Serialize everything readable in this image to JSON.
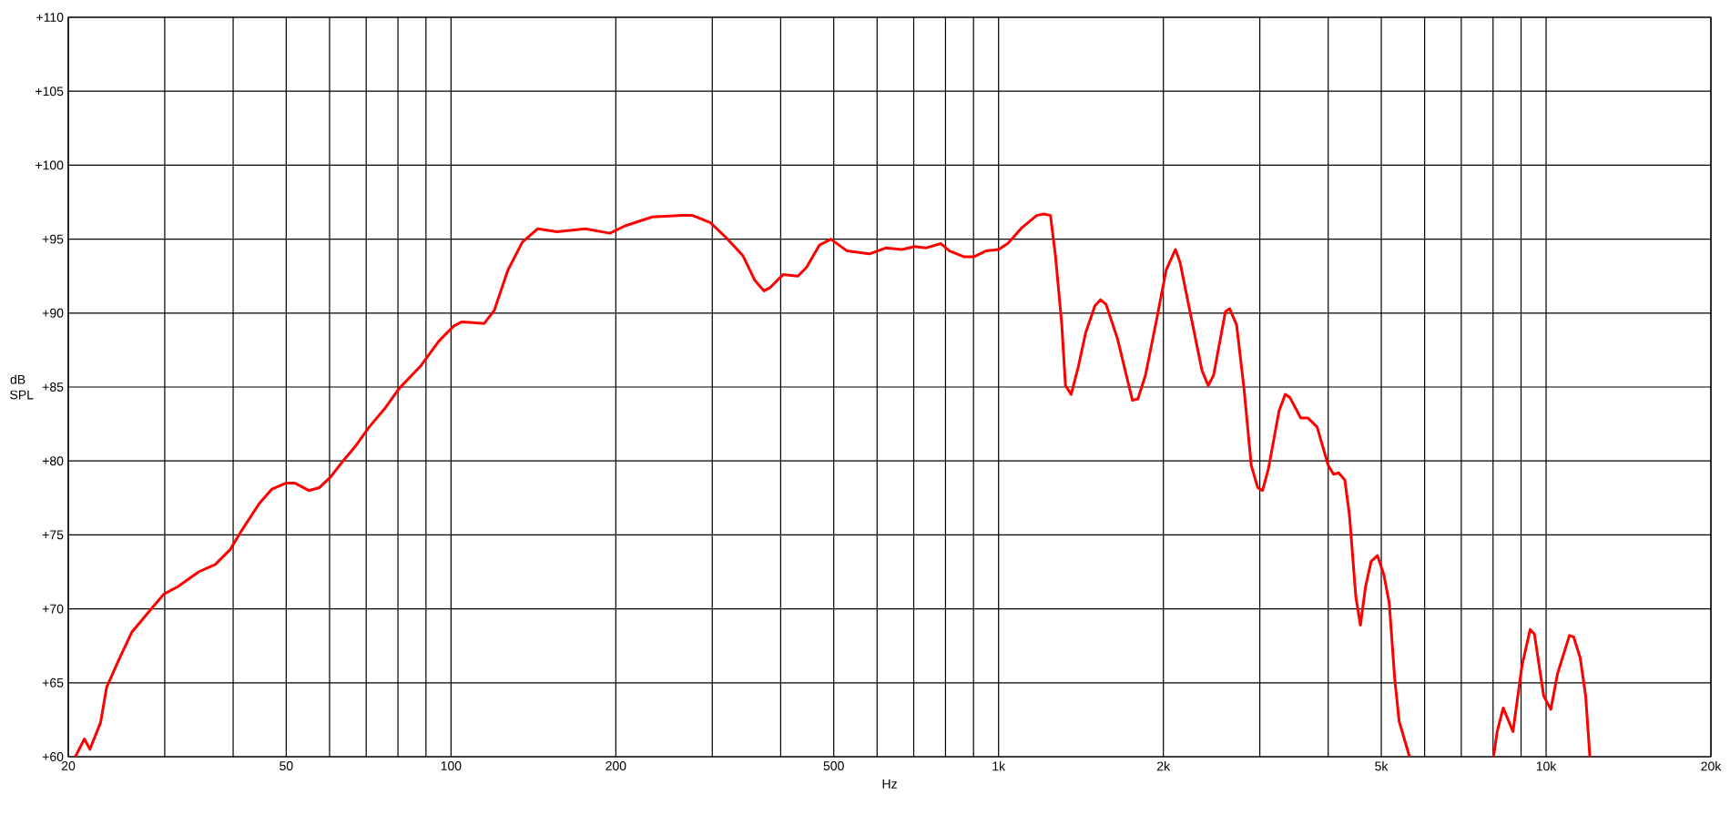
{
  "chart_data": {
    "type": "line",
    "xlabel": "Hz",
    "ylabel": "dB SPL",
    "log": "x",
    "grid": true,
    "line_style": "solid",
    "xlim": [
      20,
      20000
    ],
    "ylim": [
      60,
      110
    ],
    "xticks": [
      20,
      {
        "value": 30,
        "label": null
      },
      {
        "value": 40,
        "label": null
      },
      50,
      {
        "value": 60,
        "label": null
      },
      {
        "value": 70,
        "label": null
      },
      {
        "value": 80,
        "label": null
      },
      {
        "value": 90,
        "label": null
      },
      100,
      200,
      {
        "value": 300,
        "label": null
      },
      {
        "value": 400,
        "label": null
      },
      500,
      {
        "value": 600,
        "label": null
      },
      {
        "value": 700,
        "label": null
      },
      {
        "value": 800,
        "label": null
      },
      {
        "value": 900,
        "label": null
      },
      {
        "value": 1000,
        "label": "1k"
      },
      {
        "value": 2000,
        "label": "2k"
      },
      {
        "value": 3000,
        "label": null
      },
      {
        "value": 4000,
        "label": null
      },
      {
        "value": 5000,
        "label": "5k"
      },
      {
        "value": 6000,
        "label": null
      },
      {
        "value": 7000,
        "label": null
      },
      {
        "value": 8000,
        "label": null
      },
      {
        "value": 9000,
        "label": null
      },
      {
        "value": 10000,
        "label": "10k"
      },
      {
        "value": 20000,
        "label": "20k"
      }
    ],
    "yticks": [
      {
        "value": 60,
        "label": "+60"
      },
      {
        "value": 65,
        "label": "+65"
      },
      {
        "value": 70,
        "label": "+70"
      },
      {
        "value": 75,
        "label": "+75"
      },
      {
        "value": 80,
        "label": "+80"
      },
      {
        "value": 85,
        "label": "+85"
      },
      {
        "value": 90,
        "label": "+90"
      },
      {
        "value": 95,
        "label": "+95"
      },
      {
        "value": 100,
        "label": "+100"
      },
      {
        "value": 105,
        "label": "+105"
      },
      {
        "value": 110,
        "label": "+110"
      }
    ],
    "x": [
      20.6,
      21.4,
      21.9,
      22.9,
      23.5,
      24.7,
      26.1,
      28.5,
      29.9,
      31.7,
      34.6,
      37.1,
      39.5,
      41.3,
      44.6,
      47.1,
      49.9,
      51.9,
      55.0,
      57.5,
      60.2,
      63.5,
      66.6,
      70.9,
      75.9,
      80.4,
      87.9,
      95.0,
      101,
      104.5,
      115,
      120,
      127,
      135,
      144,
      156,
      176,
      195,
      208,
      233,
      264,
      276,
      298,
      318,
      341,
      359,
      373,
      382,
      404,
      430,
      446,
      471,
      494,
      529,
      581,
      622,
      666,
      703,
      736,
      784,
      814,
      866,
      900,
      948,
      1000,
      1039,
      1105,
      1174,
      1210,
      1244,
      1270,
      1304,
      1325,
      1357,
      1399,
      1443,
      1500,
      1535,
      1571,
      1648,
      1756,
      1797,
      1855,
      1945,
      2023,
      2104,
      2146,
      2248,
      2353,
      2415,
      2470,
      2596,
      2642,
      2721,
      2807,
      2894,
      2974,
      3035,
      3112,
      3254,
      3339,
      3404,
      3563,
      3674,
      3817,
      4000,
      4090,
      4180,
      4290,
      4375,
      4445,
      4493,
      4580,
      4680,
      4790,
      4920,
      5055,
      5170,
      5290,
      5390,
      5630,
      7000,
      8017,
      8140,
      8350,
      8700,
      9030,
      9350,
      9520,
      9900,
      10200,
      10490,
      11030,
      11230,
      11540,
      11810,
      12020
    ],
    "series": [
      {
        "color": "#ff0000",
        "values": [
          60.0,
          61.2,
          60.5,
          62.3,
          64.7,
          66.5,
          68.4,
          70.1,
          71.0,
          71.5,
          72.5,
          73.0,
          74.0,
          75.2,
          77.1,
          78.1,
          78.5,
          78.5,
          78.0,
          78.2,
          78.9,
          80.0,
          80.9,
          82.3,
          83.6,
          84.9,
          86.4,
          88.1,
          89.1,
          89.4,
          89.3,
          90.2,
          92.9,
          94.8,
          95.7,
          95.5,
          95.7,
          95.4,
          95.9,
          96.5,
          96.6,
          96.6,
          96.1,
          95.1,
          93.9,
          92.2,
          91.5,
          91.7,
          92.6,
          92.5,
          93.1,
          94.6,
          95.0,
          94.2,
          94.0,
          94.4,
          94.3,
          94.5,
          94.4,
          94.7,
          94.2,
          93.8,
          93.8,
          94.2,
          94.3,
          94.7,
          95.8,
          96.6,
          96.7,
          96.6,
          93.9,
          89.3,
          85.1,
          84.5,
          86.4,
          88.7,
          90.5,
          90.9,
          90.6,
          88.3,
          84.1,
          84.2,
          85.8,
          89.6,
          92.9,
          94.3,
          93.4,
          89.7,
          86.1,
          85.1,
          85.8,
          90.1,
          90.3,
          89.2,
          84.9,
          79.7,
          78.2,
          78.0,
          79.5,
          83.4,
          84.5,
          84.3,
          82.9,
          82.9,
          82.3,
          79.7,
          79.1,
          79.2,
          78.7,
          76.3,
          73.0,
          70.8,
          68.9,
          71.5,
          73.2,
          73.6,
          72.3,
          70.4,
          65.3,
          62.4,
          60.0,
          null,
          60.0,
          61.7,
          63.3,
          61.7,
          66.1,
          68.6,
          68.3,
          64.1,
          63.2,
          65.6,
          68.2,
          68.1,
          66.7,
          64.1,
          60.0
        ]
      }
    ]
  }
}
